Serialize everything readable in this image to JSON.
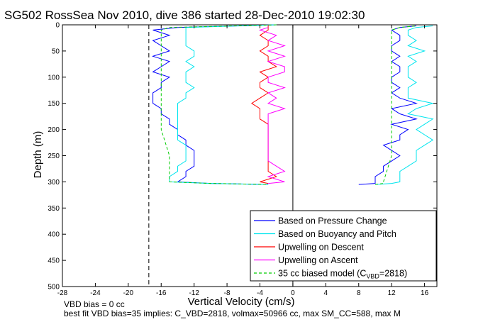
{
  "chart_data": {
    "type": "line",
    "title": "SG502 RossSea Nov 2010, dive 386 started 28-Dec-2010 19:02:30",
    "xlabel": "Vertical Velocity (cm/s)",
    "ylabel": "Depth (m)",
    "xlim": [
      -28,
      17.5
    ],
    "ylim": [
      0,
      500
    ],
    "y_reversed": true,
    "grid": false,
    "legend_position": "bottom-right",
    "xticks": [
      -28,
      -24,
      -20,
      -16,
      -12,
      -8,
      -4,
      0,
      4,
      8,
      12,
      16
    ],
    "yticks": [
      0,
      50,
      100,
      150,
      200,
      250,
      300,
      350,
      400,
      450,
      500
    ],
    "reference_lines": [
      {
        "axis": "x",
        "value": -17.5,
        "style": "dashed"
      },
      {
        "axis": "x",
        "value": 0,
        "style": "solid"
      },
      {
        "axis": "x",
        "value": 17.5,
        "style": "dashed"
      }
    ],
    "series": [
      {
        "name": "Based on Pressure Change",
        "color": "#0000ff",
        "style": "solid",
        "descent": {
          "depth": [
            0,
            5,
            10,
            20,
            30,
            40,
            50,
            60,
            70,
            80,
            90,
            100,
            110,
            120,
            130,
            140,
            150,
            160,
            170,
            180,
            190,
            200,
            210,
            220,
            230,
            240,
            250,
            260,
            270,
            280,
            290,
            300,
            303,
            305
          ],
          "w": [
            -2,
            -14,
            -17,
            -15,
            -17,
            -16,
            -15,
            -17,
            -15,
            -16,
            -17,
            -15,
            -16,
            -16,
            -17,
            -17,
            -17,
            -16,
            -16,
            -15,
            -15,
            -14,
            -14,
            -13,
            -13,
            -12,
            -12,
            -12,
            -12,
            -13,
            -13,
            -14,
            -10,
            -3
          ]
        },
        "ascent": {
          "depth": [
            305,
            303,
            300,
            290,
            280,
            270,
            260,
            250,
            240,
            230,
            220,
            210,
            200,
            190,
            180,
            170,
            160,
            150,
            140,
            130,
            120,
            110,
            100,
            90,
            80,
            70,
            60,
            50,
            40,
            30,
            20,
            10,
            5,
            2
          ],
          "w": [
            8,
            10,
            10,
            10,
            11,
            11,
            12,
            13,
            12,
            11,
            13,
            13,
            14,
            12,
            15,
            13,
            12,
            15,
            13,
            12,
            13,
            12,
            12,
            13,
            13,
            12,
            13,
            12,
            12,
            13,
            13,
            12,
            13,
            15
          ]
        }
      },
      {
        "name": "Based on Buoyancy and Pitch",
        "color": "#00e5ee",
        "style": "solid",
        "descent": {
          "depth": [
            0,
            5,
            10,
            20,
            30,
            40,
            50,
            60,
            70,
            80,
            90,
            100,
            110,
            120,
            130,
            140,
            150,
            160,
            170,
            180,
            190,
            200,
            210,
            220,
            230,
            240,
            250,
            260,
            270,
            280,
            290,
            300,
            303,
            305
          ],
          "w": [
            -2,
            -13,
            -13,
            -13,
            -13,
            -13,
            -12,
            -12,
            -13,
            -12,
            -13,
            -13,
            -13,
            -12,
            -13,
            -13,
            -14,
            -14,
            -14,
            -14,
            -14,
            -14,
            -14,
            -14,
            -13,
            -13,
            -13,
            -13,
            -14,
            -14,
            -15,
            -15,
            -10,
            -3
          ]
        },
        "ascent": {
          "depth": [
            305,
            303,
            300,
            290,
            280,
            270,
            260,
            250,
            240,
            230,
            220,
            210,
            200,
            190,
            180,
            170,
            160,
            150,
            140,
            130,
            120,
            110,
            100,
            90,
            80,
            70,
            60,
            50,
            40,
            30,
            20,
            10,
            5,
            2
          ],
          "w": [
            10,
            12,
            13,
            13,
            13,
            14,
            15,
            15,
            15,
            16,
            17,
            16,
            15,
            16,
            17,
            14,
            15,
            17,
            14,
            14,
            14,
            15,
            14,
            14,
            14,
            15,
            14,
            16,
            14,
            15,
            14,
            14,
            15,
            17
          ]
        }
      },
      {
        "name": "Upwelling on Descent",
        "color": "#ff0000",
        "style": "solid",
        "depth": [
          0,
          10,
          20,
          30,
          40,
          50,
          60,
          70,
          80,
          90,
          100,
          110,
          120,
          130,
          140,
          150,
          160,
          170,
          180,
          190,
          200,
          210,
          220,
          230,
          240,
          250,
          260,
          270,
          280,
          290,
          300,
          303
        ],
        "w": [
          -3,
          -3,
          -4,
          -3,
          -3,
          -4,
          -3,
          -3,
          -2,
          -4,
          -3,
          -4,
          -4,
          -3,
          -4,
          -5,
          -4,
          -4,
          -4,
          -3,
          -3,
          -3,
          -3,
          -3,
          -3,
          -3,
          -3,
          -3,
          -3,
          -2,
          -4,
          -3
        ]
      },
      {
        "name": "Upwelling on Ascent",
        "color": "#ff00ff",
        "style": "solid",
        "depth": [
          303,
          300,
          290,
          280,
          270,
          260,
          250,
          240,
          230,
          220,
          210,
          200,
          190,
          180,
          170,
          160,
          150,
          140,
          130,
          120,
          110,
          100,
          90,
          80,
          70,
          60,
          50,
          40,
          30,
          20,
          10,
          5
        ],
        "w": [
          -3,
          -1,
          -3,
          -1,
          -2,
          -3,
          -3,
          -3,
          -3,
          -3,
          -3,
          -3,
          -3,
          -3,
          -3,
          -1,
          -3,
          -2,
          -3,
          -1,
          -3,
          -3,
          -1,
          -1,
          -3,
          -1,
          -3,
          -1,
          -3,
          -2,
          -4,
          -3
        ]
      },
      {
        "name": "35 cc biased model (C_VBD=2818)",
        "color": "#00cc00",
        "style": "dashed",
        "descent": {
          "depth": [
            0,
            5,
            10,
            50,
            100,
            150,
            200,
            250,
            300,
            303,
            305
          ],
          "w": [
            -2,
            -15,
            -16,
            -16,
            -16,
            -16,
            -16,
            -15,
            -15,
            -10,
            -3
          ]
        },
        "ascent": {
          "depth": [
            305,
            303,
            300,
            250,
            200,
            150,
            100,
            50,
            10,
            5,
            2
          ],
          "w": [
            10,
            11,
            11,
            12,
            12,
            12,
            12,
            12,
            12,
            13,
            15
          ]
        }
      }
    ]
  },
  "legend": {
    "items": [
      {
        "label": "Based on Pressure Change",
        "color": "#0000ff",
        "dashed": false
      },
      {
        "label": "Based on Buoyancy and Pitch",
        "color": "#00e5ee",
        "dashed": false
      },
      {
        "label": "Upwelling on Descent",
        "color": "#ff0000",
        "dashed": false
      },
      {
        "label": "Upwelling on Ascent",
        "color": "#ff00ff",
        "dashed": false
      },
      {
        "label_main": "35 cc biased model (C",
        "label_sub": "VBD",
        "label_tail": "=2818)",
        "color": "#00cc00",
        "dashed": true
      }
    ]
  },
  "notes": {
    "line1": "VBD bias = 0 cc",
    "line2": "best fit VBD bias=35 implies: C_VBD=2818, volmax=50966 cc, max SM_CC=588, max M"
  }
}
